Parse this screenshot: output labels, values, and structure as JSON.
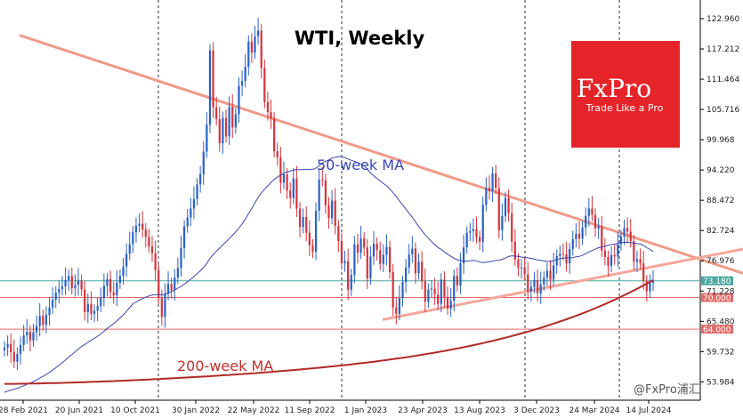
{
  "chart_data": {
    "type": "candlestick",
    "title": "WTI, Weekly",
    "x_ticks": [
      "28 Feb 2021",
      "20 Jun 2021",
      "10 Oct 2021",
      "30 Jan 2022",
      "22 May 2022",
      "11 Sep 2022",
      "1 Jan 2023",
      "23 Apr 2023",
      "13 Aug 2023",
      "3 Dec 2023",
      "24 Mar 2024",
      "14 Jul 2024"
    ],
    "y_ticks": [
      "122.960",
      "117.212",
      "111.464",
      "105.716",
      "99.968",
      "94.220",
      "88.472",
      "82.724",
      "76.976",
      "73.180",
      "71.228",
      "70.000",
      "65.480",
      "64.000",
      "59.732",
      "53.984"
    ],
    "ylim": [
      50.5,
      126.5
    ],
    "vertical_dividers": [
      "10 Oct 2021",
      "11 Sep 2022",
      "1 Jan 2023",
      "3 Dec 2023",
      "14 Jul 2024"
    ],
    "annotations": {
      "ma50": "50-week MA",
      "ma200": "200-week MA"
    },
    "horizontal_levels": [
      {
        "label": "73.180",
        "value": 73.18,
        "color": "#4aa8a0"
      },
      {
        "label": "70.000",
        "value": 70.0,
        "color": "#e46a6a"
      },
      {
        "label": "64.000",
        "value": 64.0,
        "color": "#e46a6a"
      }
    ],
    "trendlines": [
      {
        "name": "descending",
        "from": [
          22,
          119.8
        ],
        "to": [
          835,
          74.6
        ],
        "color": "#f09a8a"
      },
      {
        "name": "ascending",
        "from": [
          430,
          65.8
        ],
        "to": [
          835,
          79.2
        ],
        "color": "#f4a79a"
      }
    ],
    "series_close": [
      60.5,
      61.2,
      59.6,
      57.8,
      59.3,
      61.0,
      62.8,
      63.5,
      61.8,
      63.4,
      64.6,
      66.5,
      64.8,
      66.7,
      68.1,
      69.6,
      70.9,
      71.6,
      72.1,
      73.3,
      74.1,
      71.8,
      72.4,
      73.2,
      71.5,
      67.2,
      68.8,
      66.9,
      67.5,
      68.4,
      69.9,
      72.2,
      73.5,
      71.0,
      70.4,
      72.8,
      74.1,
      75.9,
      78.3,
      80.1,
      82.4,
      83.6,
      84.0,
      82.9,
      81.5,
      79.7,
      78.4,
      75.2,
      69.9,
      66.3,
      70.7,
      72.6,
      71.4,
      73.8,
      75.6,
      79.4,
      83.5,
      85.2,
      86.9,
      88.7,
      91.5,
      93.4,
      97.7,
      102.8,
      116.9,
      106.1,
      103.9,
      99.3,
      104.1,
      100.6,
      106.2,
      102.3,
      104.8,
      110.2,
      111.1,
      113.8,
      118.6,
      116.5,
      119.6,
      120.7,
      113.6,
      107.1,
      105.2,
      104.0,
      97.8,
      96.6,
      91.8,
      93.4,
      90.3,
      88.9,
      92.6,
      86.9,
      83.4,
      85.3,
      82.3,
      79.9,
      78.7,
      86.5,
      92.4,
      92.3,
      87.5,
      85.1,
      88.4,
      83.6,
      80.7,
      76.5,
      76.9,
      71.5,
      74.3,
      80.1,
      78.5,
      81.2,
      79.5,
      73.6,
      77.8,
      80.2,
      79.0,
      76.4,
      78.1,
      79.6,
      74.8,
      68.1,
      66.9,
      69.9,
      72.9,
      75.7,
      78.2,
      79.3,
      74.6,
      76.8,
      73.1,
      69.2,
      71.5,
      71.7,
      70.6,
      68.8,
      73.4,
      70.1,
      67.9,
      69.4,
      74.1,
      72.3,
      76.5,
      79.5,
      82.3,
      82.6,
      83.0,
      81.5,
      80.6,
      87.6,
      90.8,
      90.2,
      93.6,
      90.8,
      82.8,
      85.5,
      88.9,
      86.0,
      80.6,
      77.2,
      75.6,
      75.7,
      74.4,
      71.2,
      72.0,
      73.3,
      70.8,
      72.5,
      73.8,
      75.1,
      73.4,
      76.1,
      77.9,
      78.3,
      78.2,
      76.5,
      79.2,
      81.1,
      82.1,
      81.2,
      83.3,
      85.5,
      86.9,
      85.7,
      83.1,
      83.5,
      78.9,
      77.7,
      76.0,
      78.1,
      77.8,
      80.1,
      81.6,
      83.2,
      82.5,
      80.7,
      76.8,
      77.3,
      76.5,
      73.1,
      71.2,
      72.8,
      73.2
    ]
  },
  "logo": {
    "brand": "FxPro",
    "tagline": "Trade Like a Pro",
    "color": "#e5242a"
  },
  "watermark": "@FxPro浦汇",
  "colors": {
    "bull": "#2a62c9",
    "bear": "#d6343b",
    "ma50": "#3a45b5",
    "ma200": "#b02a25"
  }
}
